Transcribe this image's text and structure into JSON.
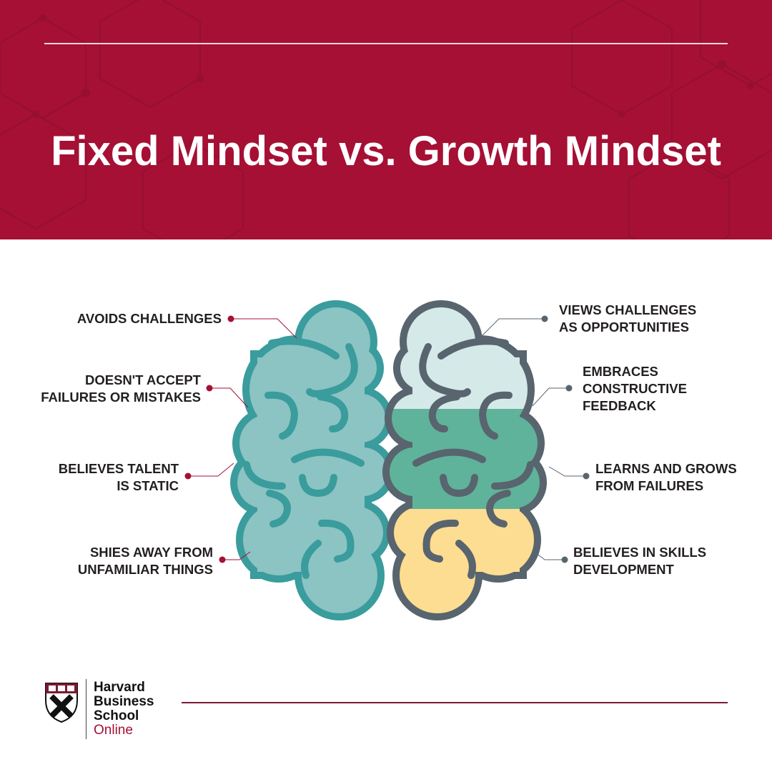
{
  "header": {
    "title": "Fixed Mindset vs. Growth Mindset"
  },
  "fixed_mindset": {
    "items": [
      "AVOIDS CHALLENGES",
      "DOESN'T ACCEPT\nFAILURES OR MISTAKES",
      "BELIEVES TALENT\nIS STATIC",
      "SHIES AWAY FROM\nUNFAMILIAR THINGS"
    ]
  },
  "growth_mindset": {
    "items": [
      "VIEWS CHALLENGES\nAS OPPORTUNITIES",
      "EMBRACES\nCONSTRUCTIVE\nFEEDBACK",
      "LEARNS AND GROWS\nFROM FAILURES",
      "BELIEVES IN SKILLS\nDEVELOPMENT"
    ]
  },
  "logo": {
    "line1": "Harvard",
    "line2": "Business",
    "line3": "School",
    "line4": "Online"
  },
  "colors": {
    "header_bg": "#a51034",
    "fixed_brain_fill": "#8cc3c3",
    "fixed_brain_stroke": "#3a9c9c",
    "growth_brain_stroke": "#58646e",
    "growth_band_top": "#d6e9e9",
    "growth_band_middle": "#5fb39a",
    "growth_band_bottom": "#fddd91",
    "fixed_dot": "#a51034",
    "growth_dot": "#58646e"
  }
}
